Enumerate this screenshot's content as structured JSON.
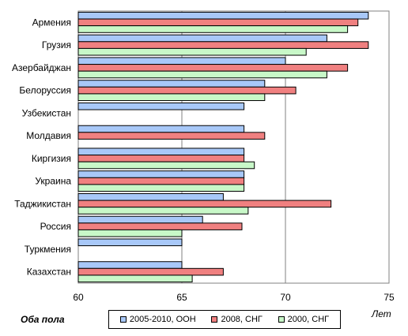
{
  "chart_data": {
    "type": "bar",
    "orientation": "horizontal",
    "categories": [
      "Армения",
      "Грузия",
      "Азербайджан",
      "Белоруссия",
      "Узбекистан",
      "Молдавия",
      "Киргизия",
      "Украина",
      "Таджикистан",
      "Россия",
      "Туркмения",
      "Казахстан"
    ],
    "series": [
      {
        "name": "2005-2010, ООН",
        "color": "#a8c8f8",
        "values": [
          74,
          72,
          70,
          69,
          68,
          68,
          68,
          68,
          67,
          66,
          65,
          65
        ]
      },
      {
        "name": "2008, СНГ",
        "color": "#f08080",
        "values": [
          73.5,
          74,
          73,
          70.5,
          null,
          69,
          68,
          68,
          72.2,
          67.9,
          null,
          67
        ]
      },
      {
        "name": "2000, СНГ",
        "color": "#c8f8c8",
        "values": [
          73,
          71,
          72,
          69,
          null,
          null,
          68.5,
          68,
          68.2,
          65,
          null,
          65.5
        ]
      }
    ],
    "xlim": [
      60,
      75
    ],
    "xticks": [
      60,
      65,
      70,
      75
    ],
    "xlabel": "Лет",
    "grid": "vertical-major",
    "legend": "bottom"
  },
  "note": "Оба пола"
}
